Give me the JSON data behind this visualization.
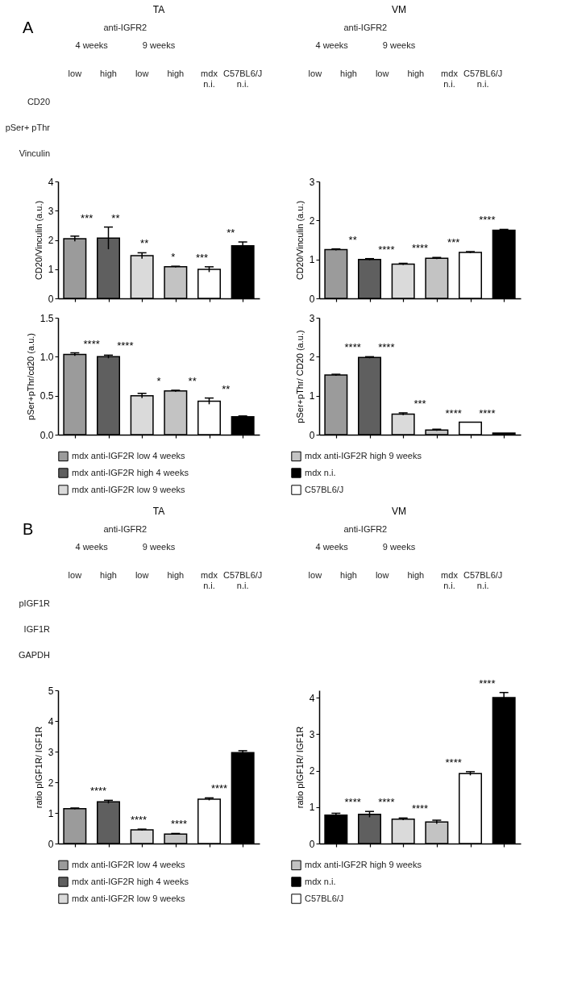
{
  "chart_data": [
    {
      "type": "other",
      "title": "TA",
      "categories": [
        "low",
        "high",
        "low",
        "high",
        "mdx n.i.",
        "C57BL6/J n.i."
      ],
      "y_categories": [
        "CD20",
        "pSer+ pThr",
        "Vinculin"
      ],
      "annotations": [
        "A",
        "anti-IGFR2",
        "4 weeks",
        "9 weeks"
      ]
    },
    {
      "type": "other",
      "title": "VM",
      "categories": [
        "low",
        "high",
        "low",
        "high",
        "mdx n.i.",
        "C57BL6/J n.i."
      ],
      "annotations": [
        "anti-IGFR2",
        "4 weeks",
        "9 weeks"
      ]
    },
    {
      "type": "bar",
      "ylabel": "CD20/Vinculin (a.u.)",
      "categories": [
        null,
        null,
        null,
        null,
        null,
        null
      ],
      "values": [
        2.04,
        2.06,
        1.46,
        1.08,
        0.99,
        1.8
      ],
      "errors": [
        0.09,
        0.38,
        0.1,
        0.02,
        0.09,
        0.13
      ],
      "colors": [
        "#9b9b9b",
        "#5f5f5f",
        "#dadada",
        "#c3c3c3",
        "#ffffff",
        "#000000"
      ],
      "ylim": [
        0,
        4
      ],
      "yticks": [
        0,
        1,
        2,
        3,
        4
      ],
      "annotations": [
        "***",
        "**",
        "**",
        "*",
        "***",
        "**"
      ]
    },
    {
      "type": "bar",
      "ylabel": "CD20/Vinculin (a.u.)",
      "categories": [
        null,
        null,
        null,
        null,
        null,
        null
      ],
      "values": [
        1.25,
        1.0,
        0.88,
        1.03,
        1.18,
        1.75
      ],
      "errors": [
        0.02,
        0.02,
        0.02,
        0.02,
        0.02,
        0.02
      ],
      "colors": [
        "#9b9b9b",
        "#5f5f5f",
        "#dadada",
        "#c3c3c3",
        "#ffffff",
        "#000000"
      ],
      "ylim": [
        0,
        3
      ],
      "yticks": [
        0,
        1,
        2,
        3
      ],
      "annotations": [
        "**",
        "****",
        "****",
        "***",
        "****"
      ]
    },
    {
      "type": "bar",
      "ylabel": "pSer+pThr/cd20 (a.u.)",
      "categories": [
        null,
        null,
        null,
        null,
        null,
        null
      ],
      "stacked": true,
      "legend": "bottom",
      "series": [
        {
          "name": "mdx anti-IGF2R low 4 weeks",
          "color": "#9b9b9b",
          "values": [
            1.03,
            null,
            null,
            null,
            null,
            null
          ],
          "errors": [
            0.02,
            null,
            null,
            null,
            null,
            null
          ]
        },
        {
          "name": "mdx anti-IGF2R high 4 weeks",
          "color": "#5f5f5f",
          "values": [
            null,
            1.0,
            null,
            null,
            null,
            null
          ],
          "errors": [
            null,
            0.02,
            null,
            null,
            null,
            null
          ]
        },
        {
          "name": "mdx anti-IGF2R low 9 weeks",
          "color": "#dadada",
          "values": [
            null,
            null,
            0.5,
            null,
            null,
            null
          ],
          "errors": [
            null,
            null,
            0.03,
            null,
            null,
            null
          ]
        },
        {
          "name": "mdx anti-IGF2R high 9 weeks",
          "color": "#c3c3c3",
          "values": [
            null,
            null,
            null,
            0.56,
            null,
            null
          ],
          "errors": [
            null,
            null,
            null,
            0.01,
            null,
            null
          ]
        },
        {
          "name": "mdx n.i.",
          "color": "#000000",
          "values": [
            null,
            null,
            null,
            null,
            null,
            0.23
          ],
          "errors": [
            null,
            null,
            null,
            null,
            null,
            0.01
          ]
        },
        {
          "name": "C57BL6/J",
          "color": "#ffffff",
          "values": [
            null,
            null,
            null,
            null,
            0.43,
            null
          ],
          "errors": [
            null,
            null,
            null,
            null,
            0.04,
            null
          ]
        }
      ],
      "ylim": [
        0,
        1.5
      ],
      "yticks": [
        {
          "value": 0,
          "label": "0.0"
        },
        0.5,
        {
          "value": 1,
          "label": "1.0"
        },
        1.5
      ],
      "annotations": [
        "****",
        "****",
        "*",
        "**",
        "**"
      ]
    },
    {
      "type": "bar",
      "ylabel": "pSer+pThr/ CD20 (a.u.)",
      "categories": [
        null,
        null,
        null,
        null,
        null,
        null
      ],
      "values": [
        1.53,
        1.98,
        0.53,
        0.12,
        0.32,
        0.04
      ],
      "errors": [
        0.02,
        0.02,
        0.03,
        0.02,
        null,
        null
      ],
      "colors": [
        "#9b9b9b",
        "#5f5f5f",
        "#dadada",
        "#c3c3c3",
        "#ffffff",
        "#000000"
      ],
      "ylim": [
        0,
        3
      ],
      "yticks": [
        0,
        1,
        2,
        3
      ],
      "annotations": [
        "****",
        "****",
        "***",
        "****",
        "****"
      ]
    },
    {
      "type": "other",
      "title": "TA",
      "categories": [
        "low",
        "high",
        "low",
        "high",
        "mdx n.i.",
        "C57BL6/J n.i."
      ],
      "y_categories": [
        "pIGF1R",
        "IGF1R",
        "GAPDH"
      ],
      "annotations": [
        "B",
        "anti-IGFR2",
        "4 weeks",
        "9 weeks"
      ]
    },
    {
      "type": "other",
      "title": "VM",
      "categories": [
        "low",
        "high",
        "low",
        "high",
        "mdx n.i.",
        "C57BL6/J n.i."
      ],
      "annotations": [
        "anti-IGFR2",
        "4 weeks",
        "9 weeks"
      ]
    },
    {
      "type": "bar",
      "ylabel": "ratio pIGF1R/ IGF1R",
      "categories": [
        null,
        null,
        null,
        null,
        null,
        null
      ],
      "stacked": true,
      "legend": "bottom",
      "series": [
        {
          "name": "mdx anti-IGF2R low 4 weeks",
          "color": "#9b9b9b",
          "values": [
            1.14,
            null,
            null,
            null,
            null,
            null
          ],
          "errors": [
            0.02,
            null,
            null,
            null,
            null,
            null
          ]
        },
        {
          "name": "mdx anti-IGF2R high 4 weeks",
          "color": "#5f5f5f",
          "values": [
            null,
            1.36,
            null,
            null,
            null,
            null
          ],
          "errors": [
            null,
            0.05,
            null,
            null,
            null,
            null
          ]
        },
        {
          "name": "mdx anti-IGF2R low 9 weeks",
          "color": "#dadada",
          "values": [
            null,
            null,
            0.45,
            null,
            null,
            null
          ],
          "errors": [
            null,
            null,
            0.02,
            null,
            null,
            null
          ]
        },
        {
          "name": "mdx anti-IGF2R high 9 weeks",
          "color": "#c3c3c3",
          "values": [
            null,
            null,
            null,
            0.31,
            null,
            null
          ],
          "errors": [
            null,
            null,
            null,
            0.02,
            null,
            null
          ]
        },
        {
          "name": "mdx n.i.",
          "color": "#000000",
          "values": [
            null,
            null,
            null,
            null,
            null,
            2.97
          ],
          "errors": [
            null,
            null,
            null,
            null,
            null,
            0.06
          ]
        },
        {
          "name": "C57BL6/J",
          "color": "#ffffff",
          "values": [
            null,
            null,
            null,
            null,
            1.45,
            null
          ],
          "errors": [
            null,
            null,
            null,
            null,
            0.04,
            null
          ]
        }
      ],
      "ylim": [
        0,
        5
      ],
      "yticks": [
        0,
        1,
        2,
        3,
        4,
        5
      ],
      "annotations": [
        "****",
        "****",
        "****",
        "****"
      ]
    },
    {
      "type": "bar",
      "ylabel": "ratio pIGF1R/ IGF1R",
      "categories": [
        null,
        null,
        null,
        null,
        null,
        null
      ],
      "values": [
        0.78,
        0.8,
        0.67,
        0.59,
        1.92,
        4.0
      ],
      "errors": [
        0.05,
        0.08,
        0.03,
        0.05,
        0.05,
        0.14
      ],
      "colors": [
        "#000000",
        "#5f5f5f",
        "#dadada",
        "#c3c3c3",
        "#ffffff",
        "#000000"
      ],
      "ylim": [
        0,
        4.2
      ],
      "yticks": [
        0,
        1,
        2,
        3,
        4
      ],
      "annotations": [
        "****",
        "****",
        "****",
        "****",
        "****"
      ]
    }
  ]
}
